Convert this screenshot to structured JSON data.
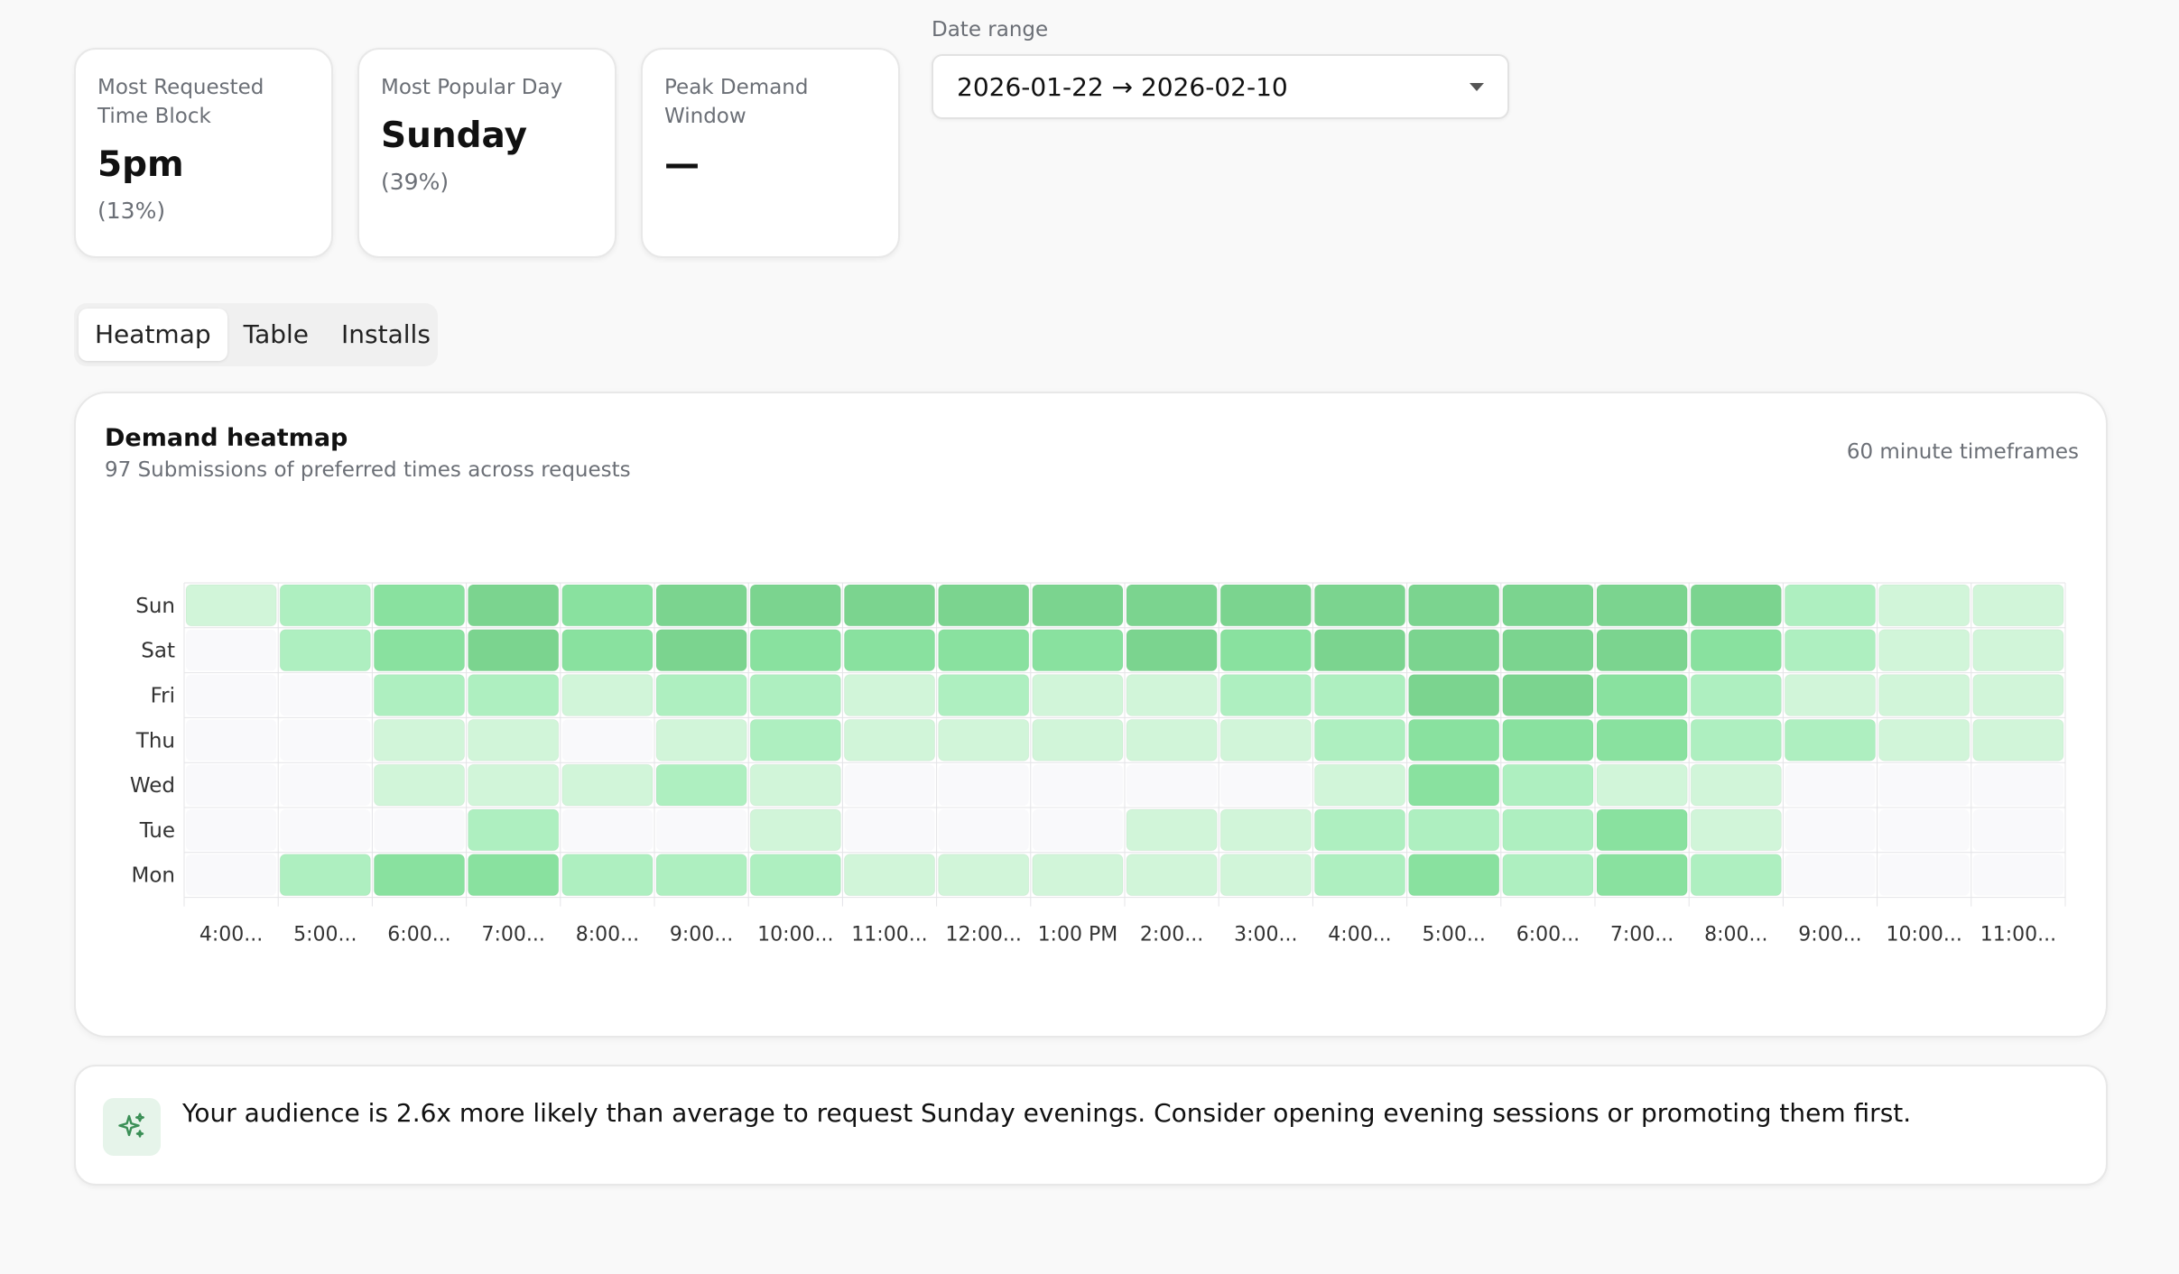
{
  "stats": [
    {
      "label": "Most Requested Time Block",
      "value": "5pm",
      "sub": "(13%)"
    },
    {
      "label": "Most Popular Day",
      "value": "Sunday",
      "sub": "(39%)"
    },
    {
      "label": "Peak Demand Window",
      "value": "—",
      "sub": ""
    }
  ],
  "date_range": {
    "label": "Date range",
    "value": "2026-01-22 → 2026-02-10"
  },
  "tabs": [
    {
      "label": "Heatmap",
      "active": true
    },
    {
      "label": "Table",
      "active": false
    },
    {
      "label": "Installs",
      "active": false
    }
  ],
  "heatmap": {
    "title": "Demand heatmap",
    "subtitle": "97 Submissions of preferred times across requests",
    "meta": "60 minute timeframes"
  },
  "insight": {
    "text": "Your audience is 2.6x more likely than average to request Sunday evenings. Consider opening evening sessions or promoting them first.",
    "icon": "sparkle-icon"
  },
  "colors": {
    "accent": "#3aa05a",
    "empty_cell": "#f9f9fb",
    "level_1": "#d1f5d9",
    "level_2": "#aeefc0",
    "level_3": "#89e19f",
    "level_4": "#7bd48f"
  },
  "chart_data": {
    "type": "heatmap",
    "x_labels": [
      "4:00...",
      "5:00...",
      "6:00...",
      "7:00...",
      "8:00...",
      "9:00...",
      "10:00...",
      "11:00...",
      "12:00...",
      "1:00 PM",
      "2:00...",
      "3:00...",
      "4:00...",
      "5:00...",
      "6:00...",
      "7:00...",
      "8:00...",
      "9:00...",
      "10:00...",
      "11:00..."
    ],
    "y_labels": [
      "Sun",
      "Sat",
      "Fri",
      "Thu",
      "Wed",
      "Tue",
      "Mon"
    ],
    "levels": [
      [
        1,
        2,
        3,
        4,
        3,
        4,
        4,
        4,
        4,
        4,
        4,
        4,
        4,
        4,
        4,
        4,
        4,
        2,
        1,
        1
      ],
      [
        0,
        2,
        3,
        4,
        3,
        4,
        3,
        3,
        3,
        3,
        4,
        3,
        4,
        4,
        4,
        4,
        3,
        2,
        1,
        1
      ],
      [
        0,
        0,
        2,
        2,
        1,
        2,
        2,
        1,
        2,
        1,
        1,
        2,
        2,
        4,
        4,
        3,
        2,
        1,
        1,
        1
      ],
      [
        0,
        0,
        1,
        1,
        0,
        1,
        2,
        1,
        1,
        1,
        1,
        1,
        2,
        3,
        3,
        3,
        2,
        2,
        1,
        1
      ],
      [
        0,
        0,
        1,
        1,
        1,
        2,
        1,
        0,
        0,
        0,
        0,
        0,
        1,
        3,
        2,
        1,
        1,
        0,
        0,
        0
      ],
      [
        0,
        0,
        0,
        2,
        0,
        0,
        1,
        0,
        0,
        0,
        1,
        1,
        2,
        2,
        2,
        3,
        1,
        0,
        0,
        0
      ],
      [
        0,
        2,
        3,
        3,
        2,
        2,
        2,
        1,
        1,
        1,
        1,
        1,
        2,
        3,
        2,
        3,
        2,
        0,
        0,
        0
      ]
    ]
  }
}
